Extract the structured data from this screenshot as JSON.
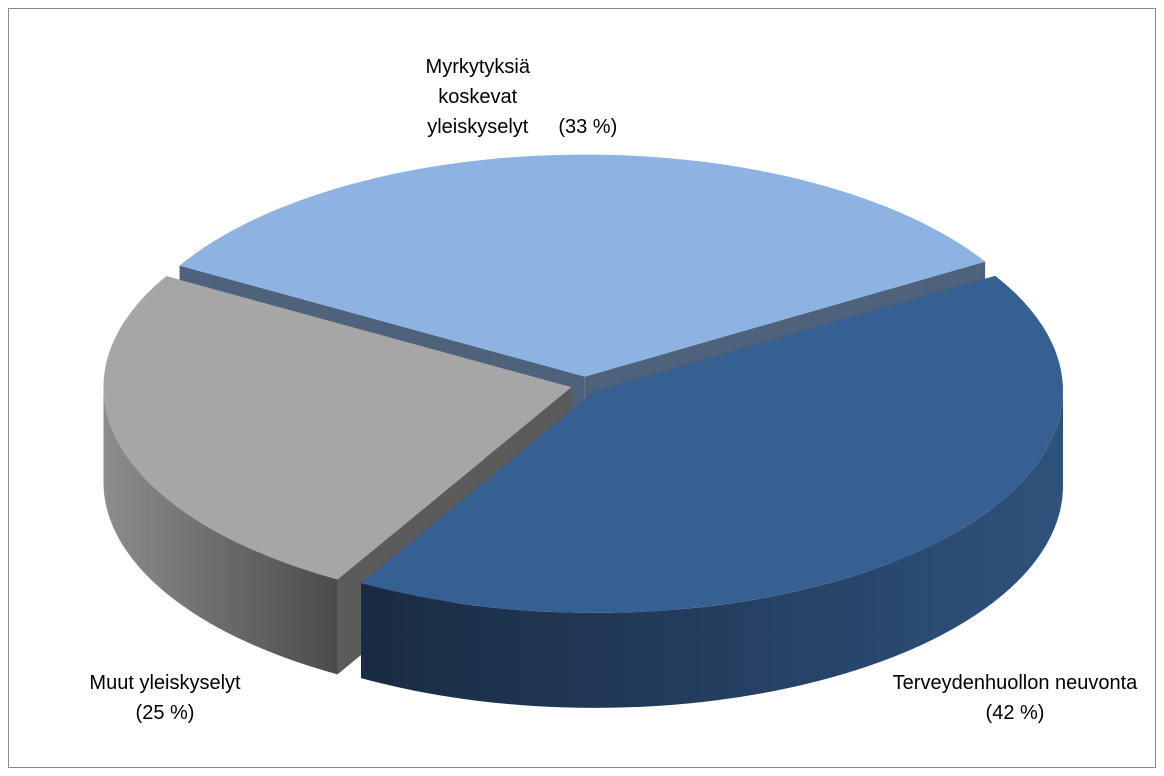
{
  "chart_data": {
    "type": "pie",
    "categories": [
      "Myrkytyksiä koskevat yleiskyselyt",
      "Terveydenhuollon neuvonta",
      "Muut yleiskyselyt"
    ],
    "values": [
      33,
      42,
      25
    ],
    "value_labels": [
      "(33 %)",
      "(42 %)",
      "(25 %)"
    ],
    "colors": [
      "#8db3e2",
      "#376092",
      "#a6a6a6"
    ]
  }
}
